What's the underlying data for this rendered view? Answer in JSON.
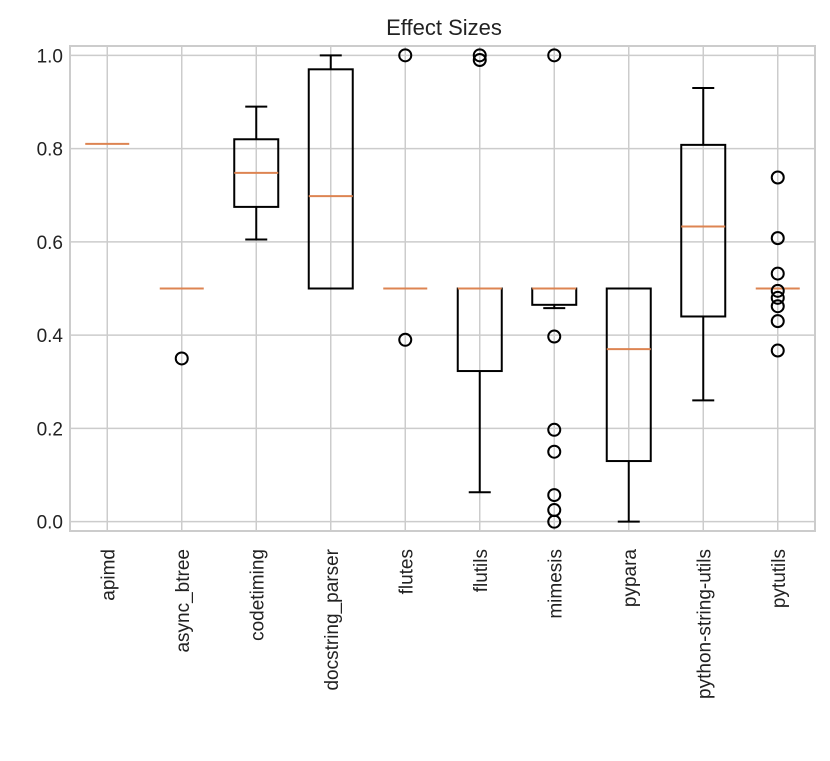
{
  "chart_data": {
    "type": "boxplot",
    "title": "Effect Sizes",
    "xlabel": "",
    "ylabel": "",
    "ylim": [
      -0.02,
      1.02
    ],
    "yticks": [
      0.0,
      0.2,
      0.4,
      0.6,
      0.8,
      1.0
    ],
    "ytick_labels": [
      "0.0",
      "0.2",
      "0.4",
      "0.6",
      "0.8",
      "1.0"
    ],
    "grid": true,
    "colors": {
      "box": "#000000",
      "median": "#dd8452",
      "grid": "#cccccc",
      "frame": "#cccccc"
    },
    "categories": [
      "apimd",
      "async_btree",
      "codetiming",
      "docstring_parser",
      "flutes",
      "flutils",
      "mimesis",
      "pypara",
      "python-string-utils",
      "pytutils"
    ],
    "boxes": [
      {
        "name": "apimd",
        "whislo": 0.81,
        "q1": 0.81,
        "med": 0.81,
        "q3": 0.81,
        "whishi": 0.81,
        "fliers": []
      },
      {
        "name": "async_btree",
        "whislo": 0.5,
        "q1": 0.5,
        "med": 0.5,
        "q3": 0.5,
        "whishi": 0.5,
        "fliers": [
          0.35
        ]
      },
      {
        "name": "codetiming",
        "whislo": 0.605,
        "q1": 0.675,
        "med": 0.748,
        "q3": 0.82,
        "whishi": 0.89,
        "fliers": []
      },
      {
        "name": "docstring_parser",
        "whislo": 0.5,
        "q1": 0.5,
        "med": 0.698,
        "q3": 0.97,
        "whishi": 1.0,
        "fliers": []
      },
      {
        "name": "flutes",
        "whislo": 0.5,
        "q1": 0.5,
        "med": 0.5,
        "q3": 0.5,
        "whishi": 0.5,
        "fliers": [
          1.0,
          0.39
        ]
      },
      {
        "name": "flutils",
        "whislo": 0.063,
        "q1": 0.323,
        "med": 0.5,
        "q3": 0.5,
        "whishi": 0.5,
        "fliers": [
          1.0,
          0.99
        ]
      },
      {
        "name": "mimesis",
        "whislo": 0.458,
        "q1": 0.465,
        "med": 0.5,
        "q3": 0.5,
        "whishi": 0.5,
        "fliers": [
          1.0,
          0.397,
          0.197,
          0.15,
          0.057,
          0.025,
          0.0
        ]
      },
      {
        "name": "pypara",
        "whislo": 0.0,
        "q1": 0.13,
        "med": 0.37,
        "q3": 0.5,
        "whishi": 0.5,
        "fliers": []
      },
      {
        "name": "python-string-utils",
        "whislo": 0.26,
        "q1": 0.44,
        "med": 0.633,
        "q3": 0.808,
        "whishi": 0.93,
        "fliers": []
      },
      {
        "name": "pytutils",
        "whislo": 0.5,
        "q1": 0.5,
        "med": 0.5,
        "q3": 0.5,
        "whishi": 0.5,
        "fliers": [
          0.738,
          0.608,
          0.532,
          0.495,
          0.48,
          0.462,
          0.43,
          0.367
        ]
      }
    ]
  }
}
